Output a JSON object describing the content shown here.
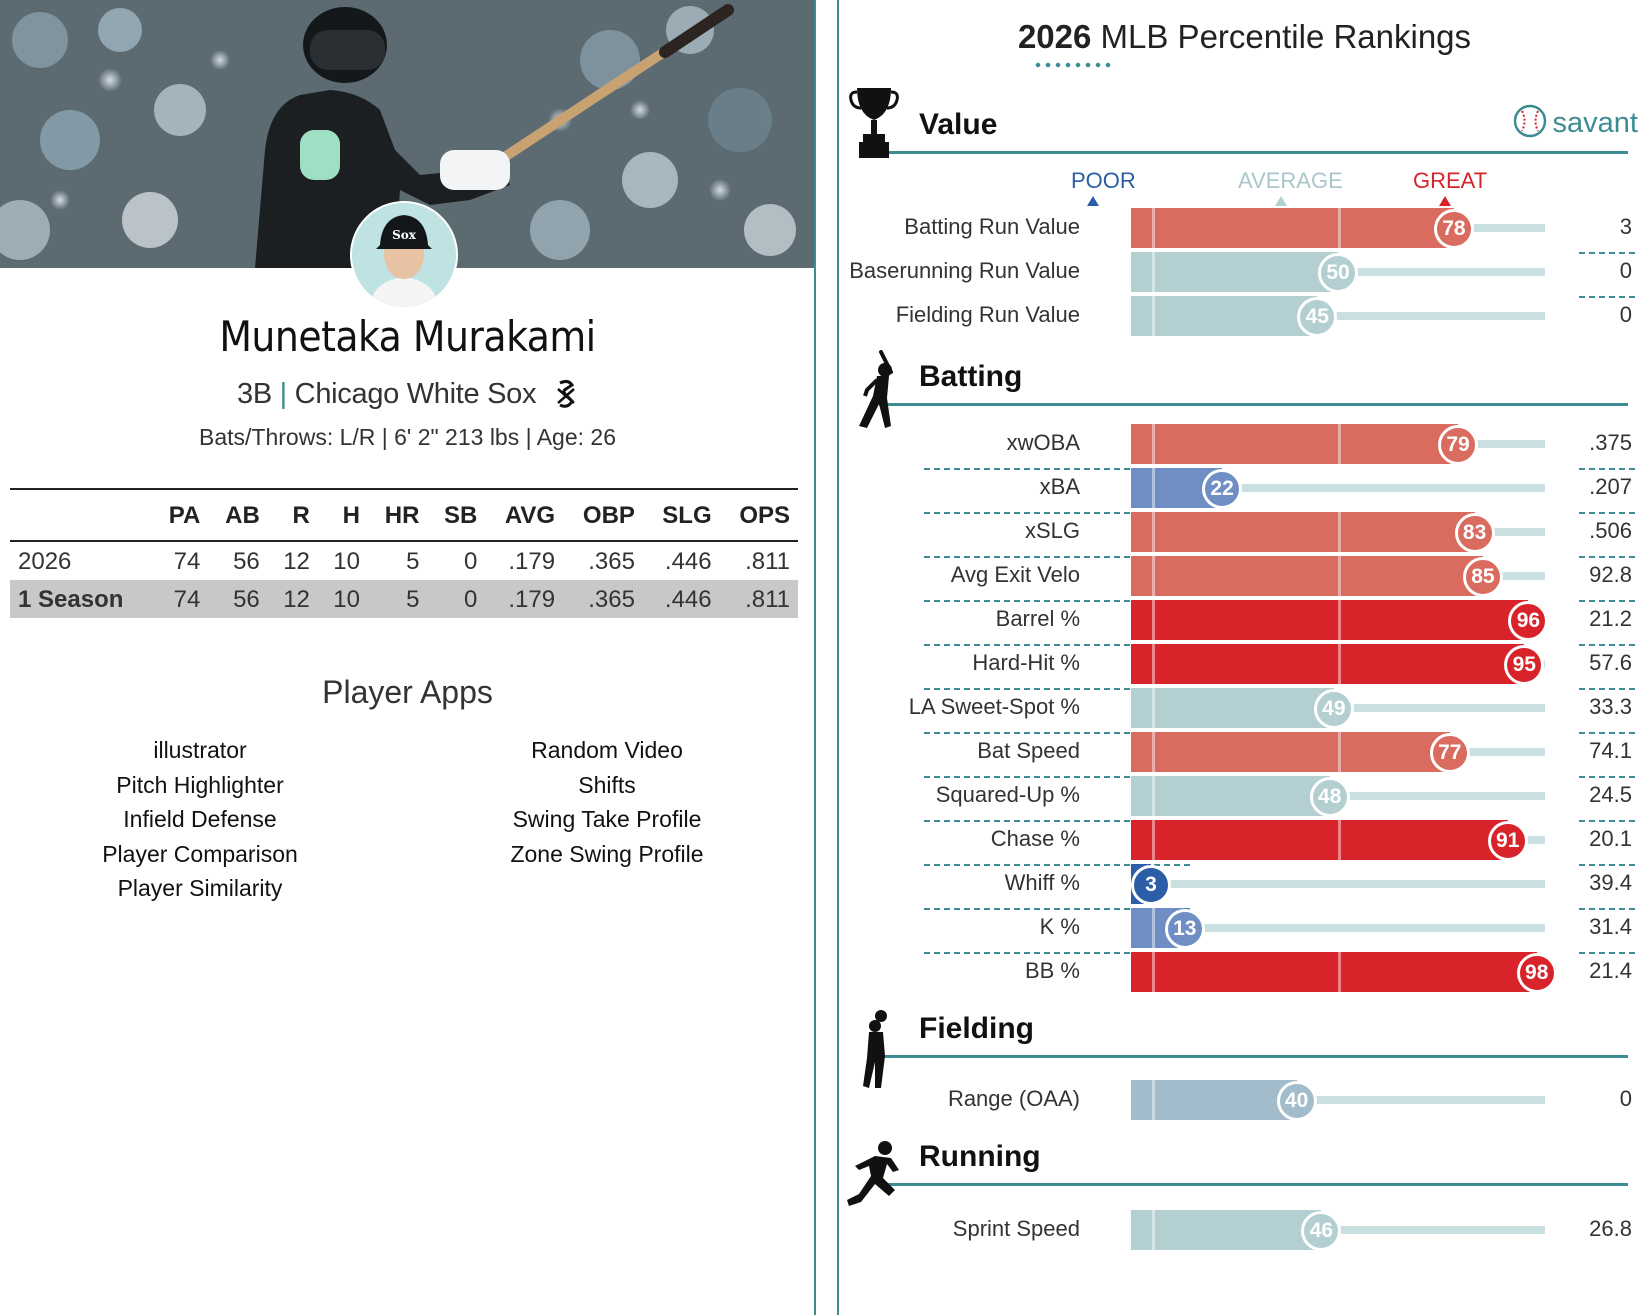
{
  "player": {
    "name": "Munetaka Murakami",
    "position": "3B",
    "team": "Chicago White Sox",
    "bio": "Bats/Throws: L/R | 6' 2\" 213 lbs | Age: 26"
  },
  "stats": {
    "headers": [
      "",
      "PA",
      "AB",
      "R",
      "H",
      "HR",
      "SB",
      "AVG",
      "OBP",
      "SLG",
      "OPS"
    ],
    "rows": [
      [
        "2026",
        "74",
        "56",
        "12",
        "10",
        "5",
        "0",
        ".179",
        ".365",
        ".446",
        ".811"
      ],
      [
        "1 Season",
        "74",
        "56",
        "12",
        "10",
        "5",
        "0",
        ".179",
        ".365",
        ".446",
        ".811"
      ]
    ]
  },
  "apps": {
    "title": "Player Apps",
    "left": [
      "illustrator",
      "Pitch Highlighter",
      "Infield Defense",
      "Player Comparison",
      "Player Similarity"
    ],
    "right": [
      "Random Video",
      "Shifts",
      "Swing Take Profile",
      "Zone Swing Profile"
    ]
  },
  "rankings": {
    "title_bold": "2026",
    "title_rest": "MLB Percentile Rankings",
    "brand": "savant",
    "scale": {
      "poor": "POOR",
      "average": "AVERAGE",
      "great": "GREAT"
    },
    "colors": {
      "great": "#d8232a",
      "good": "#d96b5f",
      "avg": "#b4cfd2",
      "belowavg": "#a3bccb",
      "poor": "#6f8ec4",
      "vpoor": "#2c5da7",
      "teal": "#3d8c94"
    },
    "sections": [
      {
        "label": "Value",
        "icon": "trophy-icon",
        "rows": [
          {
            "name": "Batting Run Value",
            "pct": 78,
            "val": "3"
          },
          {
            "name": "Baserunning Run Value",
            "pct": 50,
            "val": "0"
          },
          {
            "name": "Fielding Run Value",
            "pct": 45,
            "val": "0"
          }
        ]
      },
      {
        "label": "Batting",
        "icon": "batter-icon",
        "rows": [
          {
            "name": "xwOBA",
            "pct": 79,
            "val": ".375"
          },
          {
            "name": "xBA",
            "pct": 22,
            "val": ".207"
          },
          {
            "name": "xSLG",
            "pct": 83,
            "val": ".506"
          },
          {
            "name": "Avg Exit Velo",
            "pct": 85,
            "val": "92.8"
          },
          {
            "name": "Barrel %",
            "pct": 96,
            "val": "21.2"
          },
          {
            "name": "Hard-Hit %",
            "pct": 95,
            "val": "57.6"
          },
          {
            "name": "LA Sweet-Spot %",
            "pct": 49,
            "val": "33.3"
          },
          {
            "name": "Bat Speed",
            "pct": 77,
            "val": "74.1"
          },
          {
            "name": "Squared-Up %",
            "pct": 48,
            "val": "24.5"
          },
          {
            "name": "Chase %",
            "pct": 91,
            "val": "20.1"
          },
          {
            "name": "Whiff %",
            "pct": 3,
            "val": "39.4"
          },
          {
            "name": "K %",
            "pct": 13,
            "val": "31.4"
          },
          {
            "name": "BB %",
            "pct": 98,
            "val": "21.4"
          }
        ]
      },
      {
        "label": "Fielding",
        "icon": "fielder-icon",
        "rows": [
          {
            "name": "Range (OAA)",
            "pct": 40,
            "val": "0"
          }
        ]
      },
      {
        "label": "Running",
        "icon": "runner-icon",
        "rows": [
          {
            "name": "Sprint Speed",
            "pct": 46,
            "val": "26.8"
          }
        ]
      }
    ]
  }
}
